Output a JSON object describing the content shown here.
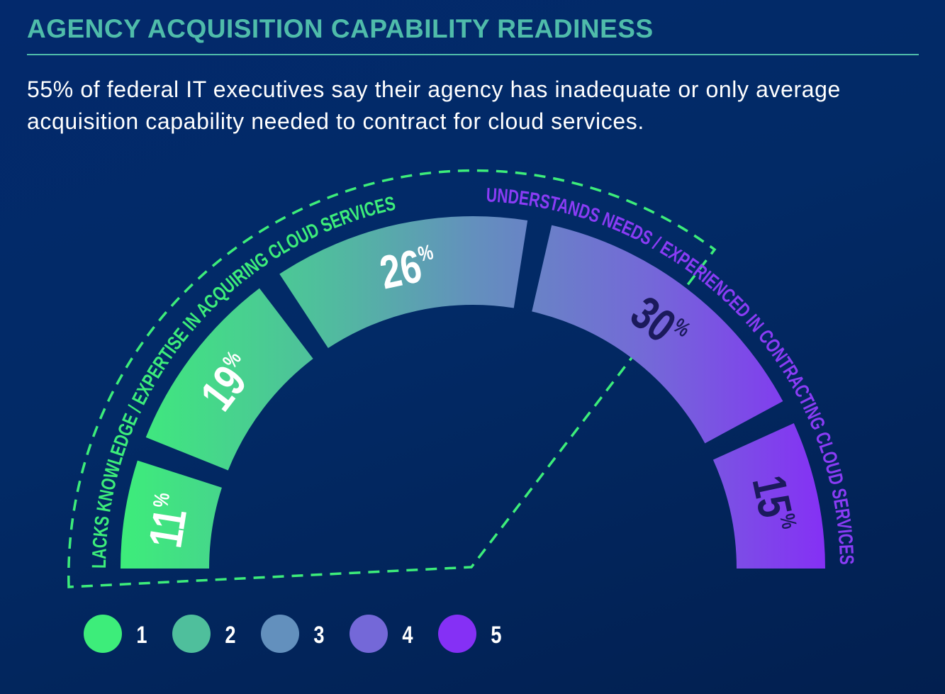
{
  "title": "AGENCY ACQUISITION CAPABILITY READINESS",
  "subtitle": "55% of federal IT executives say their agency has inadequate or only average acquisition capability needed to contract for cloud services.",
  "chart_data": {
    "type": "pie",
    "variant": "semicircle-gauge",
    "categories": [
      "1",
      "2",
      "3",
      "4",
      "5"
    ],
    "values": [
      11,
      19,
      26,
      30,
      15
    ],
    "value_labels": [
      "11",
      "19",
      "26",
      "30",
      "15"
    ],
    "unit": "%",
    "colors": [
      "#3ded7a",
      "#4fbf9c",
      "#6390bd",
      "#7468d8",
      "#8530f5"
    ],
    "label_colors": [
      "#ffffff",
      "#ffffff",
      "#ffffff",
      "#1b1a5c",
      "#1b1a5c"
    ],
    "legend": [
      "1",
      "2",
      "3",
      "4",
      "5"
    ],
    "legend_placement": "bottom-left",
    "annotations": [
      {
        "text": "LACKS KNOWLEDGE / EXPERTISE IN ACQUIRING CLOUD SERVICES",
        "color": "#3ded7a"
      },
      {
        "text": "UNDERSTANDS NEEDS / EXPERIENCED IN CONTRACTING CLOUD SERVICES",
        "color": "#8a3cf5"
      }
    ],
    "highlight_color": "#3ded7a"
  }
}
